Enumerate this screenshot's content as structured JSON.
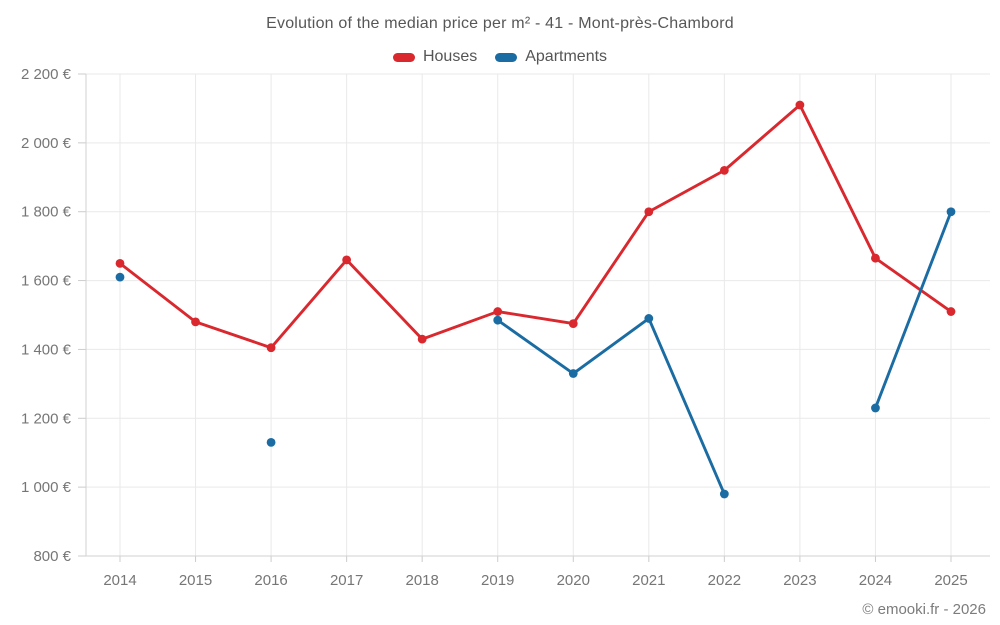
{
  "page": {
    "attribution": "© emooki.fr - 2026"
  },
  "chart_data": {
    "type": "line",
    "title": "Evolution of the median price per m² - 41 - Mont-près-Chambord",
    "categories": [
      "2014",
      "2015",
      "2016",
      "2017",
      "2018",
      "2019",
      "2020",
      "2021",
      "2022",
      "2023",
      "2024",
      "2025"
    ],
    "series": [
      {
        "name": "Houses",
        "color": "#d9282e",
        "values": [
          1650,
          1480,
          1405,
          1660,
          1430,
          1510,
          1475,
          1800,
          1920,
          2110,
          1665,
          1510
        ]
      },
      {
        "name": "Apartments",
        "color": "#1b6ca3",
        "values": [
          1610,
          null,
          1130,
          null,
          null,
          1485,
          1330,
          1490,
          980,
          null,
          1230,
          1800
        ]
      }
    ],
    "xlabel": "",
    "ylabel": "",
    "ylim": [
      800,
      2200
    ],
    "y_ticks": [
      {
        "value": 800,
        "label": "800 €"
      },
      {
        "value": 1000,
        "label": "1 000 €"
      },
      {
        "value": 1200,
        "label": "1 200 €"
      },
      {
        "value": 1400,
        "label": "1 400 €"
      },
      {
        "value": 1600,
        "label": "1 600 €"
      },
      {
        "value": 1800,
        "label": "1 800 €"
      },
      {
        "value": 2000,
        "label": "2 000 €"
      },
      {
        "value": 2200,
        "label": "2 200 €"
      }
    ],
    "grid": true,
    "legend_position": "top",
    "colors": {
      "gridline": "#e9e9e9",
      "axis_line": "#d2d2d2",
      "tick_mark": "#cccccc",
      "tick_text": "#767676",
      "title_text": "#575757",
      "legend_text": "#555555",
      "attribution_text": "#7c7c7c"
    }
  }
}
